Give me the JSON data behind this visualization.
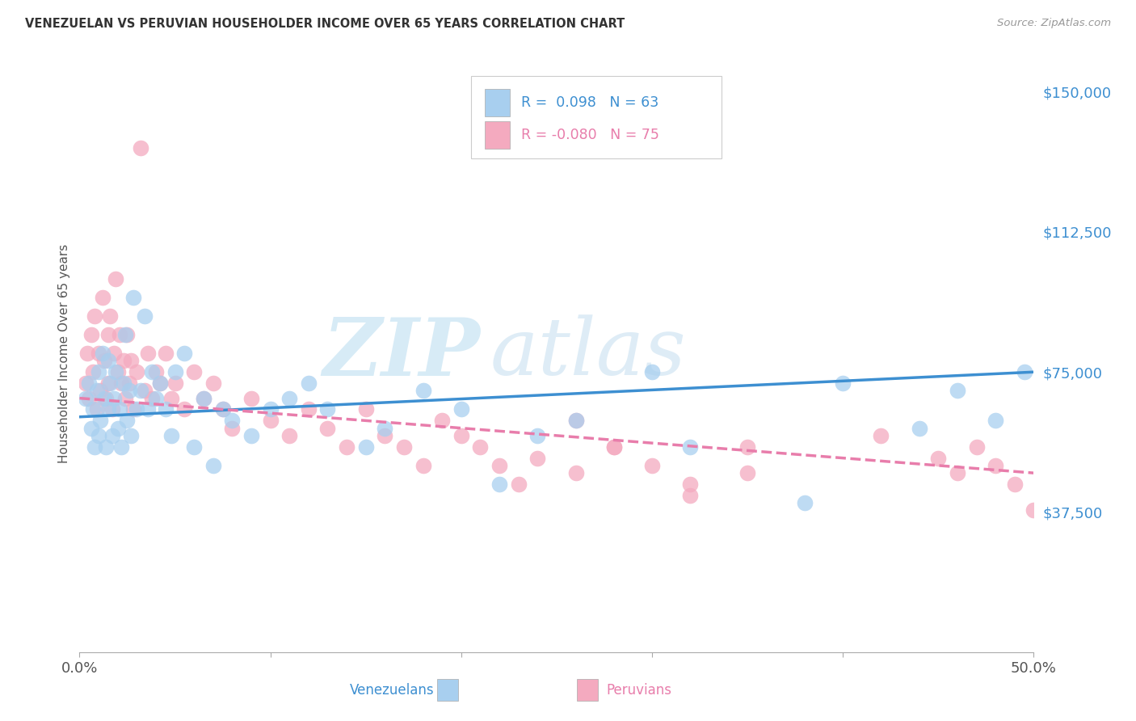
{
  "title": "VENEZUELAN VS PERUVIAN HOUSEHOLDER INCOME OVER 65 YEARS CORRELATION CHART",
  "source": "Source: ZipAtlas.com",
  "ylabel": "Householder Income Over 65 years",
  "legend_bottom_left": "Venezuelans",
  "legend_bottom_right": "Peruvians",
  "watermark_zip": "ZIP",
  "watermark_atlas": "atlas",
  "xlim": [
    0.0,
    0.5
  ],
  "ylim": [
    0,
    160000
  ],
  "yticks": [
    0,
    37500,
    75000,
    112500,
    150000
  ],
  "ytick_labels": [
    "",
    "$37,500",
    "$75,000",
    "$112,500",
    "$150,000"
  ],
  "xticks": [
    0.0,
    0.1,
    0.2,
    0.3,
    0.4,
    0.5
  ],
  "xtick_labels": [
    "0.0%",
    "",
    "",
    "",
    "",
    "50.0%"
  ],
  "venezuelan_color": "#A8CFEF",
  "peruvian_color": "#F4AABF",
  "venezuelan_line_color": "#3D8FD1",
  "peruvian_line_color": "#E87DAB",
  "background_color": "#FFFFFF",
  "grid_color": "#DDDDDD",
  "R_venezuelan": 0.098,
  "N_venezuelan": 63,
  "R_peruvian": -0.08,
  "N_peruvian": 75,
  "venezuelan_x": [
    0.003,
    0.005,
    0.006,
    0.007,
    0.008,
    0.009,
    0.01,
    0.01,
    0.011,
    0.012,
    0.013,
    0.014,
    0.015,
    0.015,
    0.016,
    0.017,
    0.018,
    0.019,
    0.02,
    0.021,
    0.022,
    0.023,
    0.024,
    0.025,
    0.026,
    0.027,
    0.028,
    0.03,
    0.032,
    0.034,
    0.036,
    0.038,
    0.04,
    0.042,
    0.045,
    0.048,
    0.05,
    0.055,
    0.06,
    0.065,
    0.07,
    0.075,
    0.08,
    0.09,
    0.1,
    0.11,
    0.12,
    0.13,
    0.15,
    0.16,
    0.18,
    0.2,
    0.22,
    0.24,
    0.26,
    0.3,
    0.32,
    0.38,
    0.4,
    0.44,
    0.46,
    0.48,
    0.495
  ],
  "venezuelan_y": [
    68000,
    72000,
    60000,
    65000,
    55000,
    70000,
    58000,
    75000,
    62000,
    80000,
    68000,
    55000,
    65000,
    78000,
    72000,
    58000,
    68000,
    75000,
    60000,
    65000,
    55000,
    72000,
    85000,
    62000,
    70000,
    58000,
    95000,
    65000,
    70000,
    90000,
    65000,
    75000,
    68000,
    72000,
    65000,
    58000,
    75000,
    80000,
    55000,
    68000,
    50000,
    65000,
    62000,
    58000,
    65000,
    68000,
    72000,
    65000,
    55000,
    60000,
    70000,
    65000,
    45000,
    58000,
    62000,
    75000,
    55000,
    40000,
    72000,
    60000,
    70000,
    62000,
    75000
  ],
  "peruvian_x": [
    0.003,
    0.004,
    0.005,
    0.006,
    0.007,
    0.008,
    0.009,
    0.01,
    0.011,
    0.012,
    0.013,
    0.014,
    0.015,
    0.015,
    0.016,
    0.017,
    0.018,
    0.019,
    0.02,
    0.021,
    0.022,
    0.023,
    0.024,
    0.025,
    0.026,
    0.027,
    0.028,
    0.03,
    0.032,
    0.034,
    0.036,
    0.038,
    0.04,
    0.042,
    0.045,
    0.048,
    0.05,
    0.055,
    0.06,
    0.065,
    0.07,
    0.075,
    0.08,
    0.09,
    0.1,
    0.11,
    0.12,
    0.13,
    0.14,
    0.15,
    0.16,
    0.17,
    0.18,
    0.19,
    0.2,
    0.21,
    0.22,
    0.23,
    0.24,
    0.26,
    0.28,
    0.32,
    0.35,
    0.26,
    0.28,
    0.3,
    0.32,
    0.35,
    0.42,
    0.45,
    0.46,
    0.47,
    0.48,
    0.49,
    0.5
  ],
  "peruvian_y": [
    72000,
    80000,
    68000,
    85000,
    75000,
    90000,
    65000,
    80000,
    70000,
    95000,
    78000,
    68000,
    85000,
    72000,
    90000,
    65000,
    80000,
    100000,
    75000,
    85000,
    72000,
    78000,
    68000,
    85000,
    72000,
    78000,
    65000,
    75000,
    135000,
    70000,
    80000,
    68000,
    75000,
    72000,
    80000,
    68000,
    72000,
    65000,
    75000,
    68000,
    72000,
    65000,
    60000,
    68000,
    62000,
    58000,
    65000,
    60000,
    55000,
    65000,
    58000,
    55000,
    50000,
    62000,
    58000,
    55000,
    50000,
    45000,
    52000,
    48000,
    55000,
    42000,
    55000,
    62000,
    55000,
    50000,
    45000,
    48000,
    58000,
    52000,
    48000,
    55000,
    50000,
    45000,
    38000
  ]
}
